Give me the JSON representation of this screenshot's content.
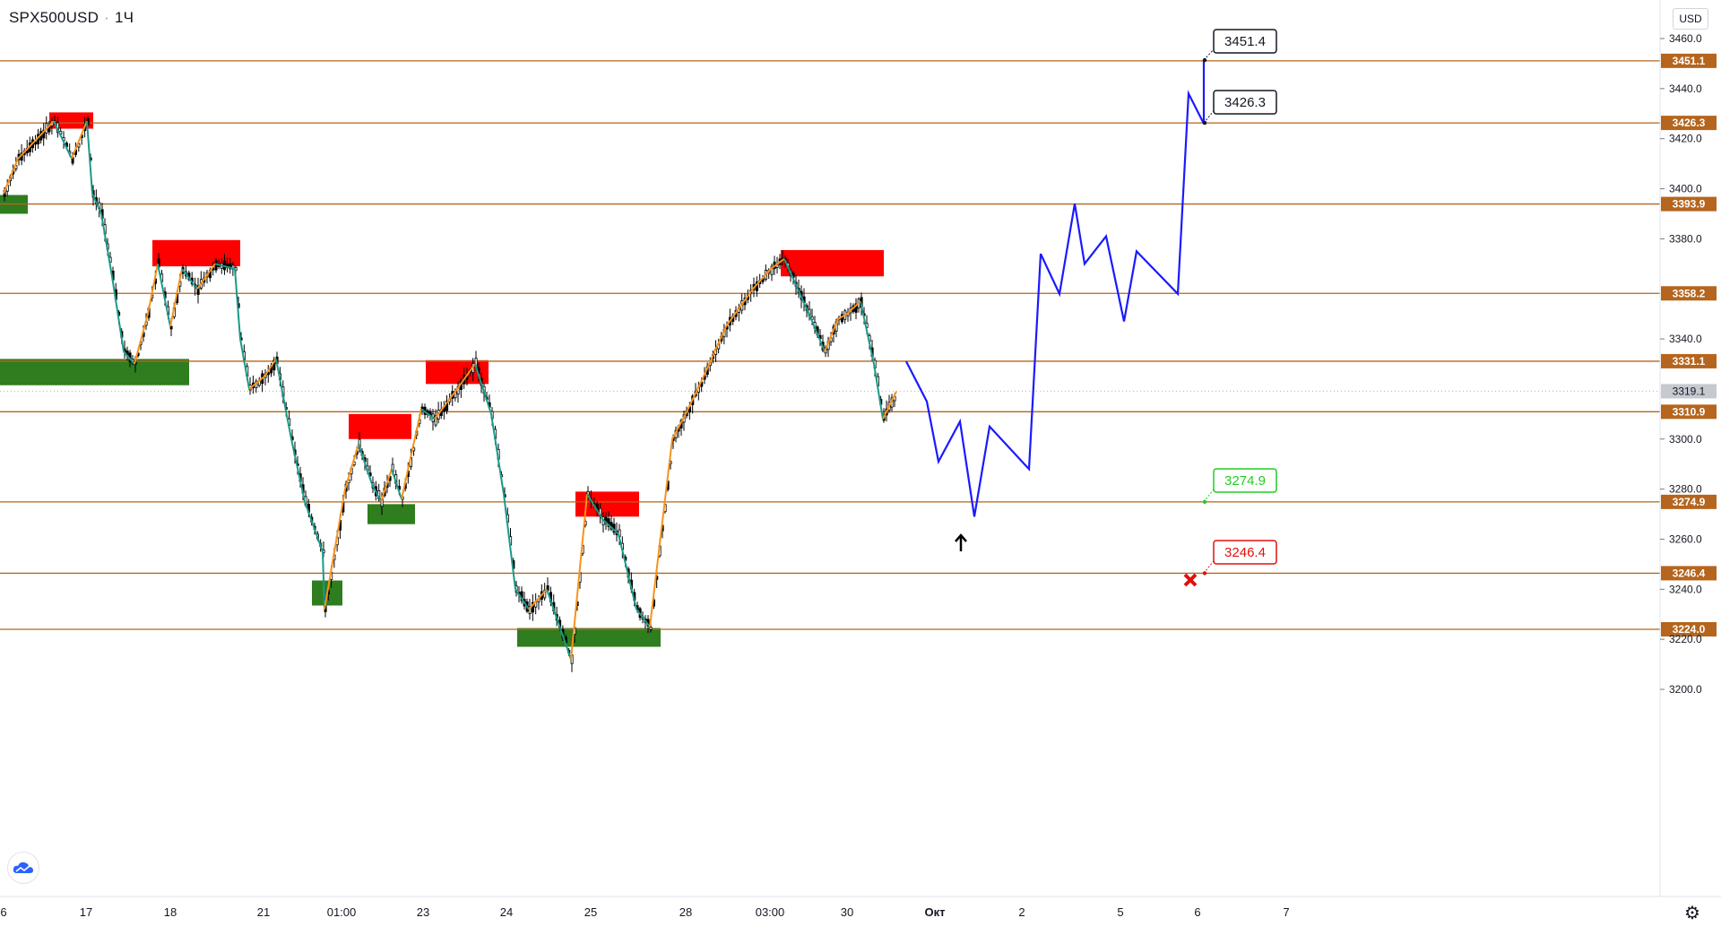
{
  "header": {
    "symbol": "SPX500USD",
    "interval": "1Ч",
    "separator": "·",
    "currency": "USD"
  },
  "colors": {
    "level_line": "#b5651d",
    "level_label_bg": "#b5651d",
    "supply_zone": "#ff0000",
    "demand_zone": "#2e7d1e",
    "zigzag_orange": "#f7931a",
    "zigzag_teal": "#1a9a8a",
    "forecast": "#1a1aff",
    "candle": "#000000",
    "current_price_bg": "#c7c9d1",
    "callout_green": "#22cc22",
    "callout_red": "#e01010"
  },
  "icons": {
    "logo": "tradingview-cloud-icon",
    "settings": "gear-icon",
    "arrow": "up-arrow-icon",
    "stop": "cross-icon"
  },
  "chart_data": {
    "type": "candlestick",
    "title": "SPX500USD · 1Ч",
    "ylim": [
      3185,
      3468
    ],
    "y_ticks": [
      3200.0,
      3220.0,
      3240.0,
      3260.0,
      3280.0,
      3300.0,
      3340.0,
      3380.0,
      3400.0,
      3420.0,
      3440.0,
      3460.0
    ],
    "y_tick_labels": [
      "3200.0",
      "3220.0",
      "3240.0",
      "3260.0",
      "3280.0",
      "3300.0",
      "3340.0",
      "3380.0",
      "3400.0",
      "3420.0",
      "3440.0",
      "3460.0"
    ],
    "x_tick_labels": [
      "6",
      "17",
      "18",
      "21",
      "01:00",
      "23",
      "24",
      "25",
      "28",
      "03:00",
      "30",
      "Окт",
      "2",
      "5",
      "6",
      "7"
    ],
    "levels": [
      3451.1,
      3426.3,
      3393.9,
      3358.2,
      3331.1,
      3310.9,
      3274.9,
      3246.4,
      3224.0
    ],
    "level_labels": [
      "3451.1",
      "3426.3",
      "3393.9",
      "3358.2",
      "3331.1",
      "3310.9",
      "3274.9",
      "3246.4",
      "3224.0"
    ],
    "current_price": 3319.1,
    "current_price_label": "3319.1",
    "callouts": [
      {
        "label": "3451.4",
        "value": 3451.4,
        "style": "black"
      },
      {
        "label": "3426.3",
        "value": 3426.3,
        "style": "black"
      },
      {
        "label": "3274.9",
        "value": 3274.9,
        "style": "green"
      },
      {
        "label": "3246.4",
        "value": 3246.4,
        "style": "red"
      }
    ],
    "price_path": [
      [
        "16 Sep 06:00",
        3398
      ],
      [
        "16 Sep 10:00",
        3412
      ],
      [
        "16 Sep 14:00",
        3427
      ],
      [
        "16 Sep 18:00",
        3412
      ],
      [
        "16 Sep 22:00",
        3427
      ],
      [
        "17 Sep 02:00",
        3398
      ],
      [
        "17 Sep 06:00",
        3390
      ],
      [
        "17 Sep 10:00",
        3365
      ],
      [
        "17 Sep 14:00",
        3335
      ],
      [
        "17 Sep 18:00",
        3330
      ],
      [
        "17 Sep 22:00",
        3350
      ],
      [
        "18 Sep 02:00",
        3370
      ],
      [
        "18 Sep 06:00",
        3345
      ],
      [
        "18 Sep 10:00",
        3368
      ],
      [
        "18 Sep 14:00",
        3360
      ],
      [
        "18 Sep 18:00",
        3370
      ],
      [
        "18 Sep 22:00",
        3368
      ],
      [
        "21 Sep 02:00",
        3340
      ],
      [
        "21 Sep 06:00",
        3320
      ],
      [
        "21 Sep 10:00",
        3325
      ],
      [
        "21 Sep 14:00",
        3332
      ],
      [
        "21 Sep 18:00",
        3300
      ],
      [
        "21 Sep 22:00",
        3275
      ],
      [
        "22 Sep 01:00",
        3255
      ],
      [
        "22 Sep 06:00",
        3232
      ],
      [
        "22 Sep 10:00",
        3280
      ],
      [
        "22 Sep 14:00",
        3298
      ],
      [
        "22 Sep 18:00",
        3282
      ],
      [
        "22 Sep 22:00",
        3275
      ],
      [
        "23 Sep 02:00",
        3288
      ],
      [
        "23 Sep 06:00",
        3276
      ],
      [
        "23 Sep 10:00",
        3312
      ],
      [
        "23 Sep 14:00",
        3308
      ],
      [
        "23 Sep 18:00",
        3320
      ],
      [
        "23 Sep 22:00",
        3330
      ],
      [
        "24 Sep 02:00",
        3310
      ],
      [
        "24 Sep 06:00",
        3278
      ],
      [
        "24 Sep 10:00",
        3240
      ],
      [
        "24 Sep 14:00",
        3232
      ],
      [
        "24 Sep 18:00",
        3240
      ],
      [
        "24 Sep 22:00",
        3212
      ],
      [
        "25 Sep 02:00",
        3278
      ],
      [
        "25 Sep 06:00",
        3268
      ],
      [
        "25 Sep 10:00",
        3262
      ],
      [
        "25 Sep 14:00",
        3232
      ],
      [
        "25 Sep 18:00",
        3225
      ],
      [
        "25 Sep 22:00",
        3255
      ],
      [
        "28 Sep 02:00",
        3300
      ],
      [
        "28 Sep 06:00",
        3310
      ],
      [
        "28 Sep 10:00",
        3325
      ],
      [
        "28 Sep 14:00",
        3345
      ],
      [
        "28 Sep 18:00",
        3360
      ],
      [
        "29 Sep 03:00",
        3368
      ],
      [
        "29 Sep 06:00",
        3372
      ],
      [
        "29 Sep 10:00",
        3360
      ],
      [
        "29 Sep 14:00",
        3348
      ],
      [
        "29 Sep 18:00",
        3335
      ],
      [
        "29 Sep 22:00",
        3348
      ],
      [
        "30 Sep 02:00",
        3350
      ],
      [
        "30 Sep 06:00",
        3355
      ],
      [
        "30 Sep 10:00",
        3330
      ],
      [
        "30 Sep 14:00",
        3308
      ],
      [
        "30 Sep 18:00",
        3319
      ]
    ],
    "forecast_path": [
      3331,
      3315,
      3291,
      3307,
      3269,
      3305,
      3288,
      3374,
      3358,
      3394,
      3370,
      3381,
      3347,
      3375,
      3358,
      3438,
      3426,
      3451.4
    ],
    "supply_zones": [
      {
        "low": 3423,
        "high": 3431
      },
      {
        "low": 3369,
        "high": 3378
      },
      {
        "low": 3320,
        "high": 3330
      },
      {
        "low": 3299,
        "high": 3308
      },
      {
        "low": 3269,
        "high": 3278
      },
      {
        "low": 3365,
        "high": 3375
      }
    ],
    "demand_zones": [
      {
        "low": 3389,
        "high": 3397
      },
      {
        "low": 3321,
        "high": 3332
      },
      {
        "low": 3233,
        "high": 3243
      },
      {
        "low": 3266,
        "high": 3274
      },
      {
        "low": 3217,
        "high": 3224
      }
    ],
    "grid": false,
    "legend": "none"
  }
}
